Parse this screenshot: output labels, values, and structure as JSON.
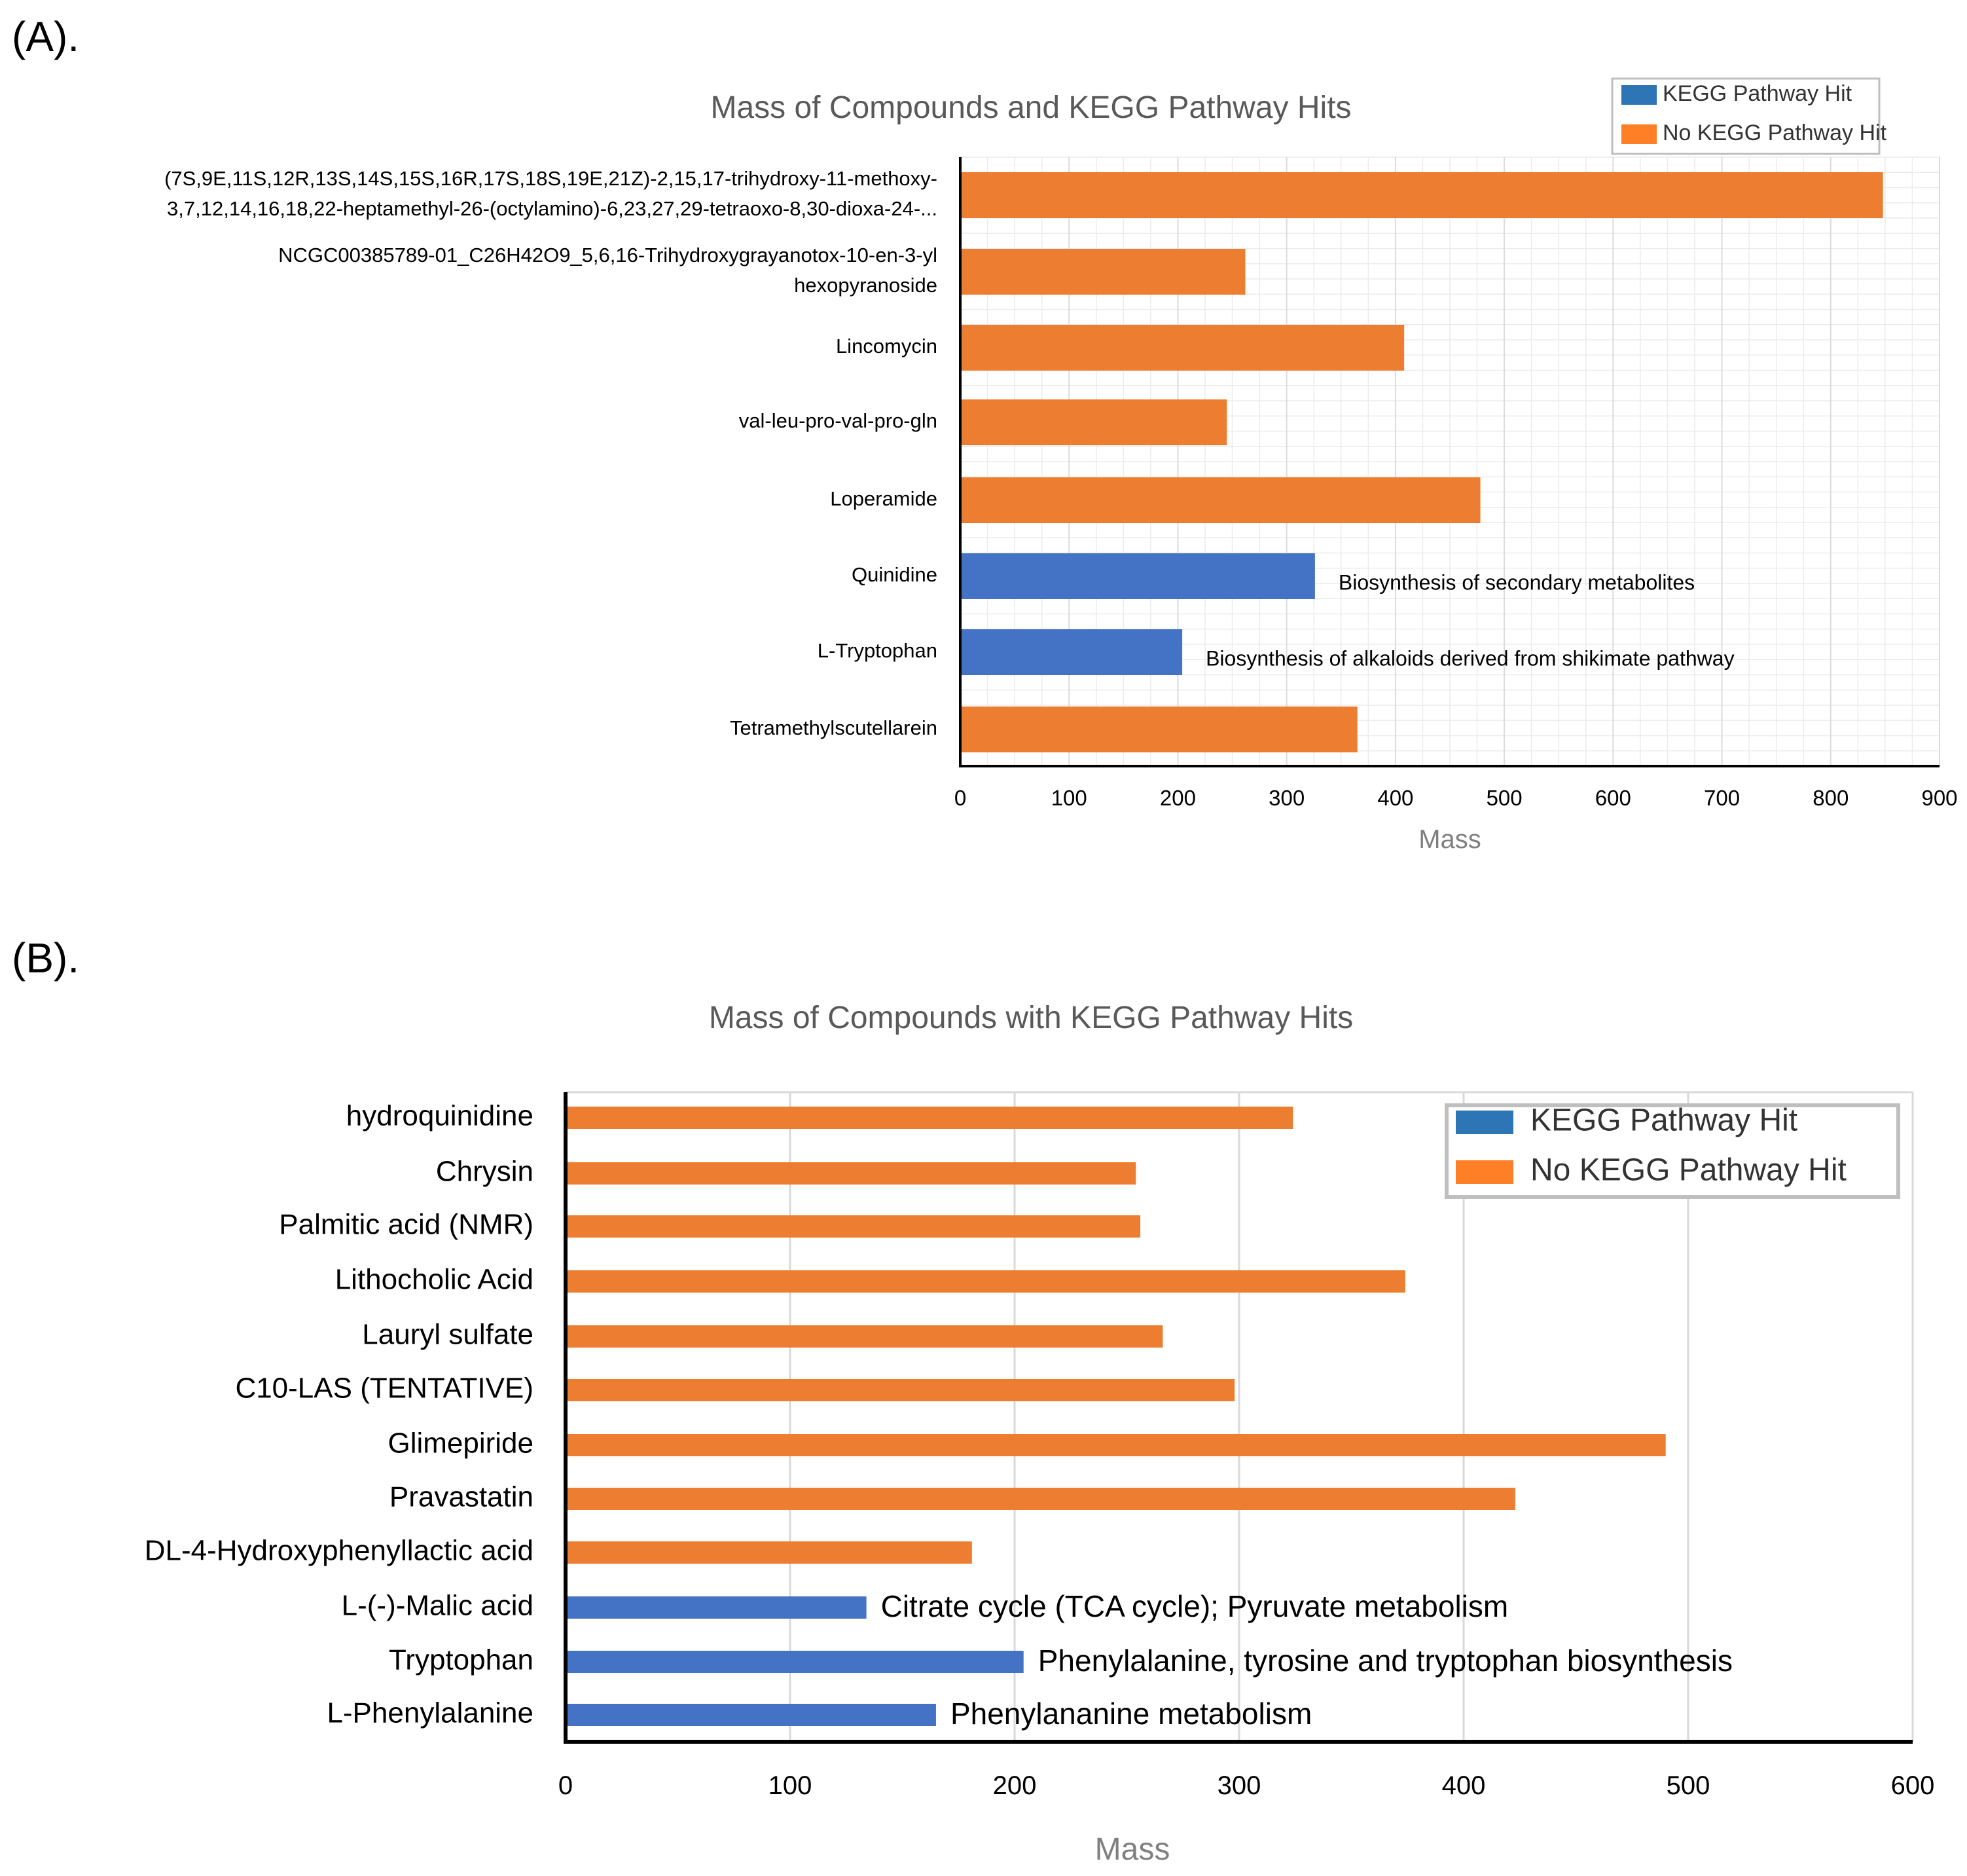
{
  "colors": {
    "kegg": "#4472C4",
    "no_kegg": "#ED7D31",
    "legend_kegg": "#2E75B6",
    "legend_no_kegg": "#FF7F27"
  },
  "chart_data": [
    {
      "panel_label": "(A).",
      "type": "bar",
      "orientation": "horizontal",
      "title": "Mass of Compounds and KEGG Pathway Hits",
      "xlabel": "Mass",
      "ylabel": "",
      "xlim": [
        0,
        900
      ],
      "xticks": [
        "0",
        "100",
        "200",
        "300",
        "400",
        "500",
        "600",
        "700",
        "800",
        "900"
      ],
      "grid": true,
      "legend": {
        "position": "top-right",
        "entries": [
          "KEGG Pathway Hit",
          "No KEGG Pathway Hit"
        ]
      },
      "categories": [
        [
          "(7S,9E,11S,12R,13S,14S,15S,16R,17S,18S,19E,21Z)-2,15,17-trihydroxy-11-methoxy-",
          "3,7,12,14,16,18,22-heptamethyl-26-(octylamino)-6,23,27,29-tetraoxo-8,30-dioxa-24-..."
        ],
        [
          "NCGC00385789-01_C26H42O9_5,6,16-Trihydroxygrayanotox-10-en-3-yl",
          "hexopyranoside"
        ],
        [
          "Lincomycin"
        ],
        [
          "val-leu-pro-val-pro-gln"
        ],
        [
          "Loperamide"
        ],
        [
          "Quinidine"
        ],
        [
          "L-Tryptophan"
        ],
        [
          "Tetramethylscutellarein"
        ]
      ],
      "values": [
        848,
        262,
        408,
        245,
        478,
        326,
        204,
        365
      ],
      "kegg_hit": [
        false,
        false,
        false,
        false,
        false,
        true,
        true,
        false
      ],
      "annotations": [
        "",
        "",
        "",
        "",
        "",
        "Biosynthesis of secondary metabolites",
        "Biosynthesis of alkaloids derived from shikimate pathway",
        ""
      ]
    },
    {
      "panel_label": "(B).",
      "type": "bar",
      "orientation": "horizontal",
      "title": "Mass of Compounds with KEGG Pathway Hits",
      "xlabel": "Mass",
      "ylabel": "",
      "xlim": [
        0,
        600
      ],
      "xticks": [
        "0",
        "100",
        "200",
        "300",
        "400",
        "500",
        "600"
      ],
      "grid": true,
      "legend": {
        "position": "top-right",
        "entries": [
          "KEGG Pathway Hit",
          "No KEGG Pathway Hit"
        ]
      },
      "categories": [
        [
          "hydroquinidine"
        ],
        [
          "Chrysin"
        ],
        [
          "Palmitic acid (NMR)"
        ],
        [
          "Lithocholic Acid"
        ],
        [
          "Lauryl sulfate"
        ],
        [
          "C10-LAS (TENTATIVE)"
        ],
        [
          "Glimepiride"
        ],
        [
          "Pravastatin"
        ],
        [
          "DL-4-Hydroxyphenyllactic acid"
        ],
        [
          "L-(-)-Malic acid"
        ],
        [
          "Tryptophan"
        ],
        [
          "L-Phenylalanine"
        ]
      ],
      "values": [
        324,
        254,
        256,
        374,
        266,
        298,
        490,
        423,
        181,
        134,
        204,
        165
      ],
      "kegg_hit": [
        false,
        false,
        false,
        false,
        false,
        false,
        false,
        false,
        false,
        true,
        true,
        true
      ],
      "annotations": [
        "",
        "",
        "",
        "",
        "",
        "",
        "",
        "",
        "",
        "Citrate cycle (TCA cycle); Pyruvate metabolism",
        "Phenylalanine, tyrosine and tryptophan biosynthesis",
        "Phenylananine metabolism"
      ]
    }
  ]
}
